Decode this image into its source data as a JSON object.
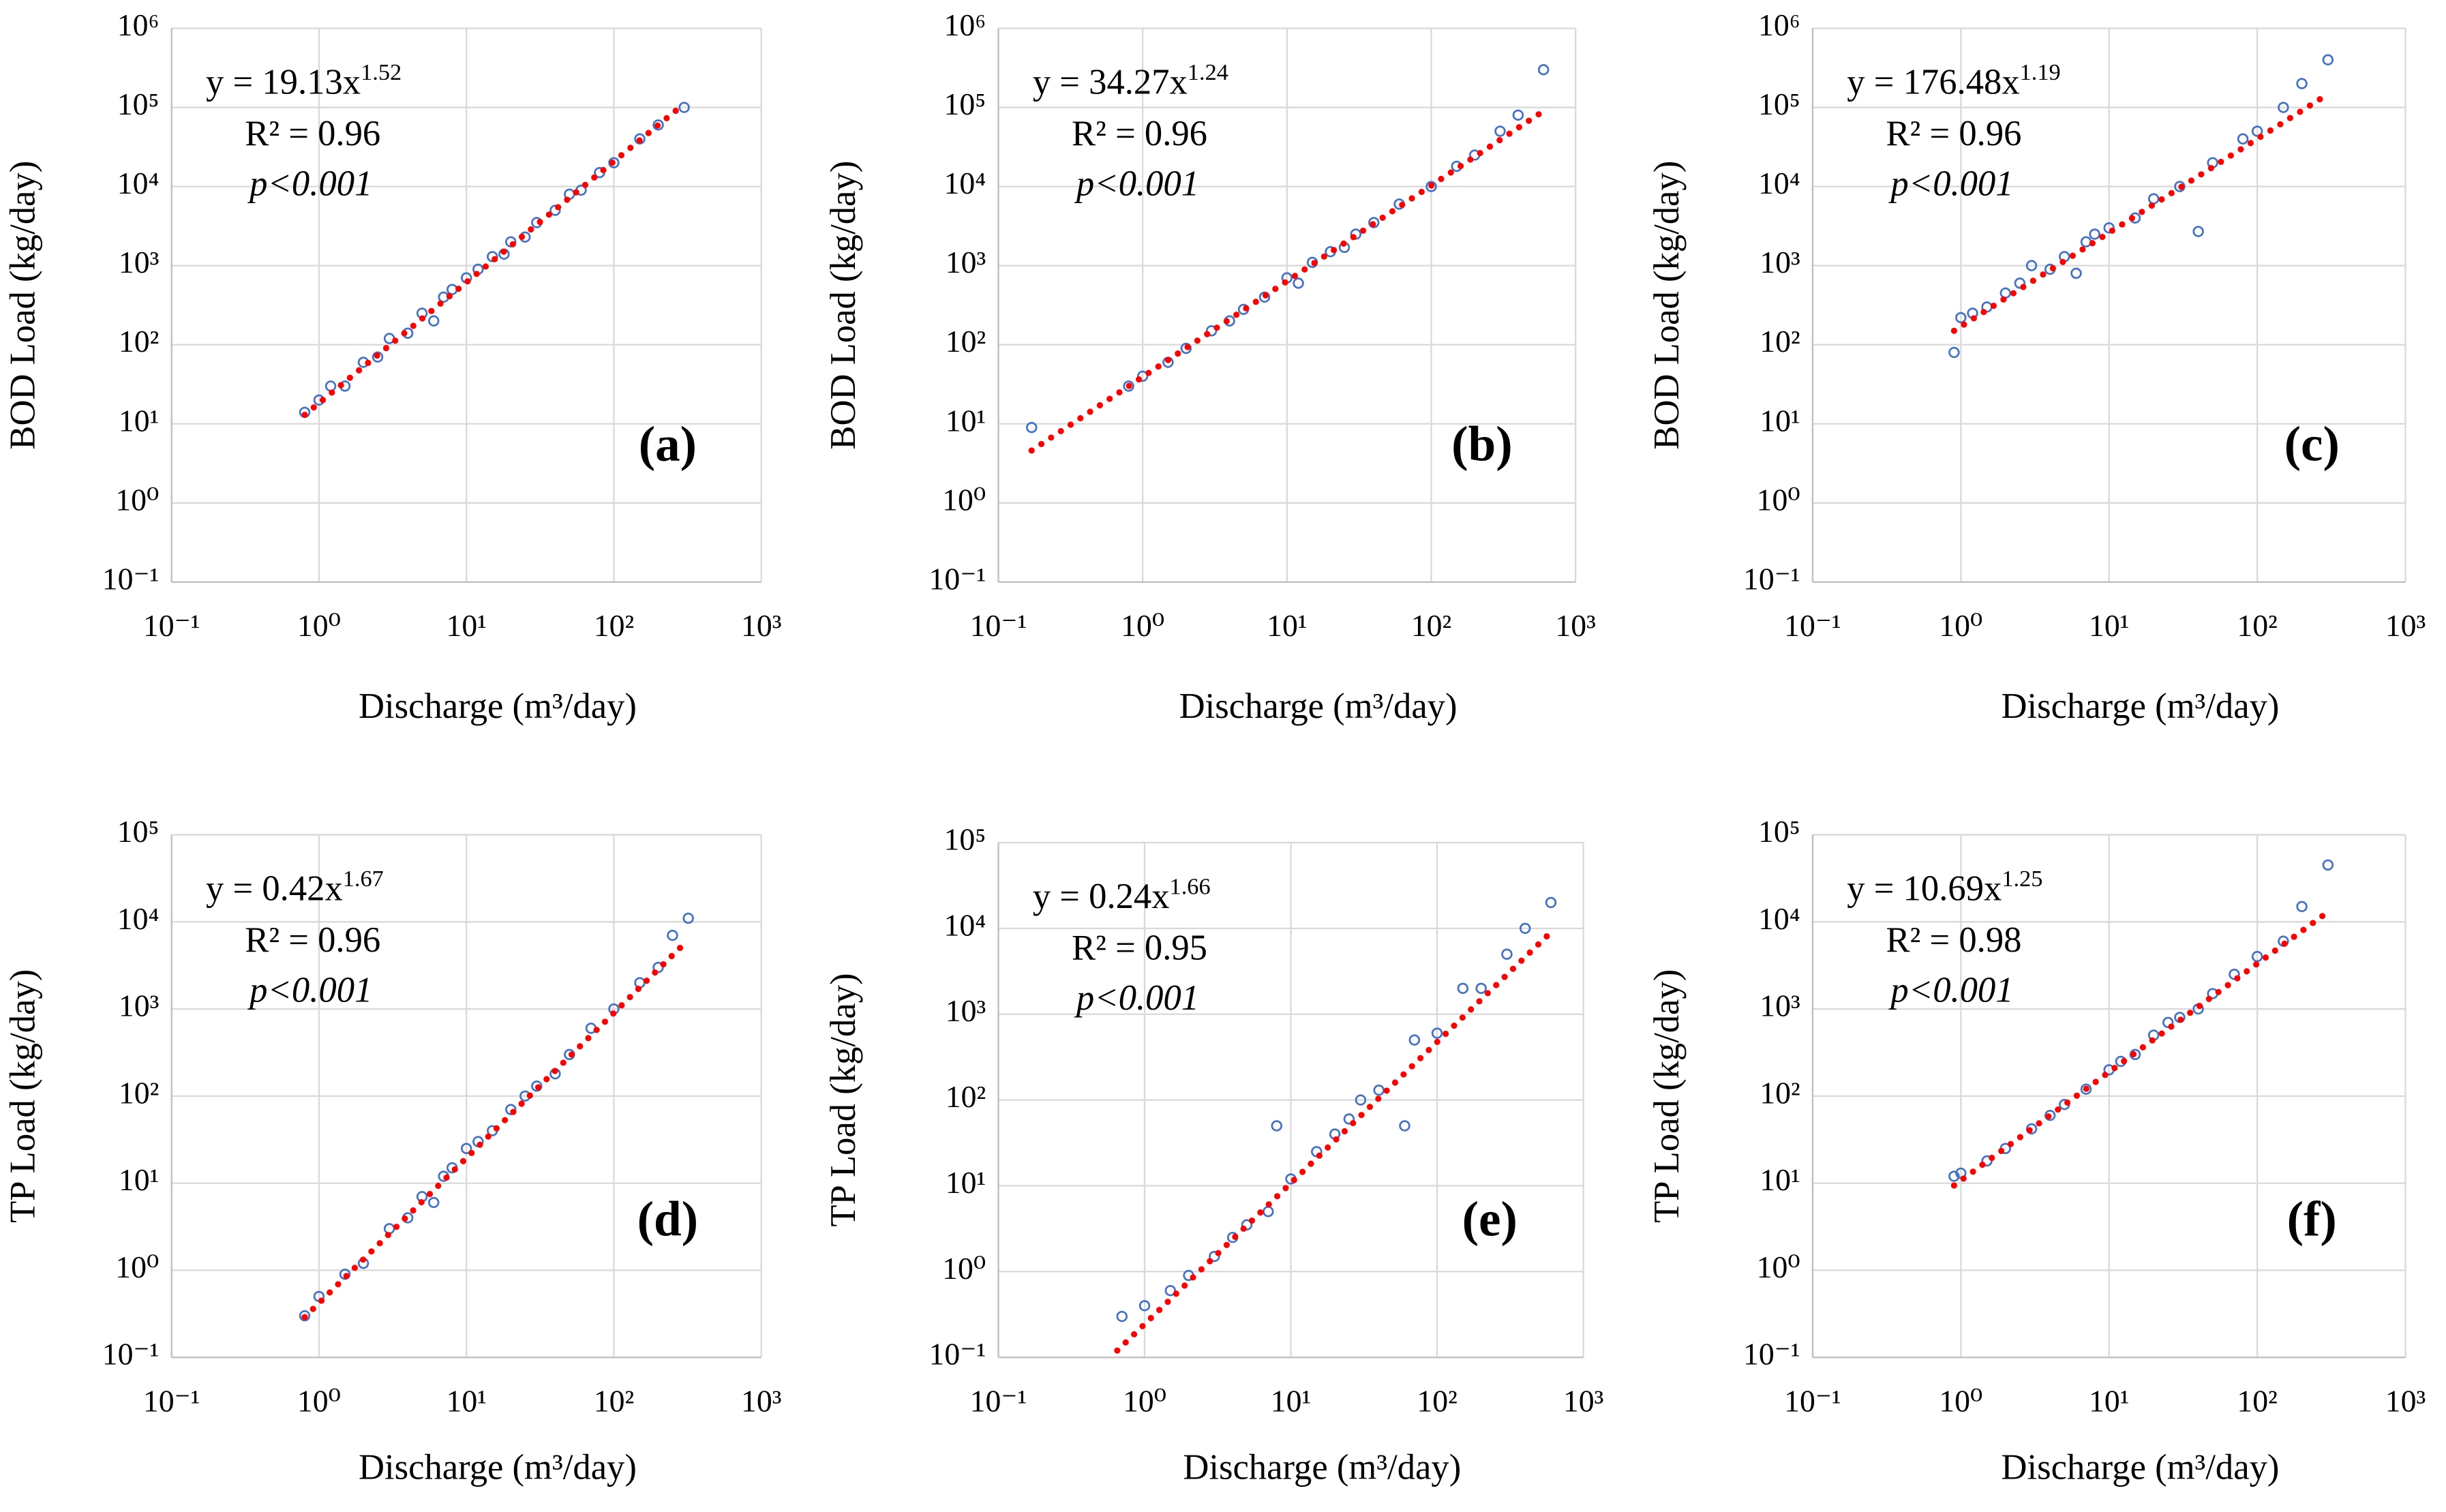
{
  "chart_data": [
    {
      "type": "scatter",
      "panel_label": "(a)",
      "x_label": "Discharge (m³/day)",
      "y_label": "BOD Load (kg/day)",
      "equation": {
        "prefix": "y = 19.13x",
        "exponent": "1.52"
      },
      "r_squared": "R² = 0.96",
      "p_value": "p<0.001",
      "color": "#4472c4",
      "xscale": "log",
      "yscale": "log",
      "grid": true,
      "xlim": [
        0.1,
        1000
      ],
      "xticks": [
        {
          "value": 0.1,
          "label": "10⁻¹"
        },
        {
          "value": 1,
          "label": "10⁰"
        },
        {
          "value": 10,
          "label": "10¹"
        },
        {
          "value": 100,
          "label": "10²"
        },
        {
          "value": 1000,
          "label": "10³"
        }
      ],
      "ylim": [
        0.1,
        1000000
      ],
      "yticks": [
        {
          "value": 0.1,
          "label": "10⁻¹"
        },
        {
          "value": 1,
          "label": "10⁰"
        },
        {
          "value": 10,
          "label": "10¹"
        },
        {
          "value": 100,
          "label": "10²"
        },
        {
          "value": 1000,
          "label": "10³"
        },
        {
          "value": 10000,
          "label": "10⁴"
        },
        {
          "value": 100000,
          "label": "10⁵"
        },
        {
          "value": 1000000,
          "label": "10⁶"
        }
      ],
      "x": [
        0.8,
        1,
        1.2,
        1.5,
        2,
        2.5,
        3,
        4,
        5,
        6,
        7,
        8,
        10,
        12,
        15,
        18,
        20,
        25,
        30,
        40,
        50,
        60,
        80,
        100,
        150,
        200,
        300
      ],
      "y": [
        14,
        20,
        30,
        30,
        60,
        70,
        120,
        140,
        250,
        200,
        400,
        500,
        700,
        900,
        1300,
        1400,
        2000,
        2300,
        3500,
        5000,
        8000,
        9000,
        15000,
        20000,
        40000,
        60000,
        100000
      ],
      "trendline": {
        "x": [
          0.8,
          280
        ],
        "y": [
          13,
          100000
        ],
        "color": "#ff0000"
      }
    },
    {
      "type": "scatter",
      "panel_label": "(b)",
      "x_label": "Discharge (m³/day)",
      "y_label": "BOD Load (kg/day)",
      "equation": {
        "prefix": "y = 34.27x",
        "exponent": "1.24"
      },
      "r_squared": "R² = 0.96",
      "p_value": "p<0.001",
      "color": "#4472c4",
      "xscale": "log",
      "yscale": "log",
      "grid": true,
      "xlim": [
        0.1,
        1000
      ],
      "xticks": [
        {
          "value": 0.1,
          "label": "10⁻¹"
        },
        {
          "value": 1,
          "label": "10⁰"
        },
        {
          "value": 10,
          "label": "10¹"
        },
        {
          "value": 100,
          "label": "10²"
        },
        {
          "value": 1000,
          "label": "10³"
        }
      ],
      "ylim": [
        0.1,
        1000000
      ],
      "yticks": [
        {
          "value": 0.1,
          "label": "10⁻¹"
        },
        {
          "value": 1,
          "label": "10⁰"
        },
        {
          "value": 10,
          "label": "10¹"
        },
        {
          "value": 100,
          "label": "10²"
        },
        {
          "value": 1000,
          "label": "10³"
        },
        {
          "value": 10000,
          "label": "10⁴"
        },
        {
          "value": 100000,
          "label": "10⁵"
        },
        {
          "value": 1000000,
          "label": "10⁶"
        }
      ],
      "x": [
        0.17,
        0.8,
        1,
        1.5,
        2,
        3,
        4,
        5,
        7,
        10,
        12,
        15,
        20,
        25,
        30,
        40,
        60,
        100,
        150,
        200,
        300,
        400,
        600
      ],
      "y": [
        9,
        30,
        40,
        60,
        90,
        150,
        200,
        280,
        400,
        700,
        600,
        1100,
        1500,
        1700,
        2500,
        3500,
        6000,
        10000,
        18000,
        25000,
        50000,
        80000,
        300000
      ],
      "trendline": {
        "x": [
          0.17,
          600
        ],
        "y": [
          4.6,
          90000
        ],
        "color": "#ff0000"
      }
    },
    {
      "type": "scatter",
      "panel_label": "(c)",
      "x_label": "Discharge (m³/day)",
      "y_label": "BOD Load (kg/day)",
      "equation": {
        "prefix": "y = 176.48x",
        "exponent": "1.19"
      },
      "r_squared": "R² = 0.96",
      "p_value": "p<0.001",
      "color": "#4472c4",
      "xscale": "log",
      "yscale": "log",
      "grid": true,
      "xlim": [
        0.1,
        1000
      ],
      "xticks": [
        {
          "value": 0.1,
          "label": "10⁻¹"
        },
        {
          "value": 1,
          "label": "10⁰"
        },
        {
          "value": 10,
          "label": "10¹"
        },
        {
          "value": 100,
          "label": "10²"
        },
        {
          "value": 1000,
          "label": "10³"
        }
      ],
      "ylim": [
        0.1,
        1000000
      ],
      "yticks": [
        {
          "value": 0.1,
          "label": "10⁻¹"
        },
        {
          "value": 1,
          "label": "10⁰"
        },
        {
          "value": 10,
          "label": "10¹"
        },
        {
          "value": 100,
          "label": "10²"
        },
        {
          "value": 1000,
          "label": "10³"
        },
        {
          "value": 10000,
          "label": "10⁴"
        },
        {
          "value": 100000,
          "label": "10⁵"
        },
        {
          "value": 1000000,
          "label": "10⁶"
        }
      ],
      "x": [
        0.9,
        1,
        1.2,
        1.5,
        2,
        2.5,
        3,
        4,
        5,
        6,
        7,
        8,
        10,
        15,
        20,
        30,
        40,
        50,
        80,
        100,
        150,
        200,
        300
      ],
      "y": [
        80,
        220,
        250,
        300,
        450,
        600,
        1000,
        900,
        1300,
        800,
        2000,
        2500,
        3000,
        4000,
        7000,
        10000,
        2700,
        20000,
        40000,
        50000,
        100000,
        200000,
        400000
      ],
      "trendline": {
        "x": [
          0.9,
          270
        ],
        "y": [
          150,
          130000
        ],
        "color": "#ff0000"
      }
    },
    {
      "type": "scatter",
      "panel_label": "(d)",
      "x_label": "Discharge (m³/day)",
      "y_label": "TP Load (kg/day)",
      "equation": {
        "prefix": "y = 0.42x",
        "exponent": "1.67"
      },
      "r_squared": "R² = 0.96",
      "p_value": "p<0.001",
      "color": "#4472c4",
      "xscale": "log",
      "yscale": "log",
      "grid": true,
      "xlim": [
        0.1,
        1000
      ],
      "xticks": [
        {
          "value": 0.1,
          "label": "10⁻¹"
        },
        {
          "value": 1,
          "label": "10⁰"
        },
        {
          "value": 10,
          "label": "10¹"
        },
        {
          "value": 100,
          "label": "10²"
        },
        {
          "value": 1000,
          "label": "10³"
        }
      ],
      "ylim": [
        0.1,
        100000
      ],
      "yticks": [
        {
          "value": 0.1,
          "label": "10⁻¹"
        },
        {
          "value": 1,
          "label": "10⁰"
        },
        {
          "value": 10,
          "label": "10¹"
        },
        {
          "value": 100,
          "label": "10²"
        },
        {
          "value": 1000,
          "label": "10³"
        },
        {
          "value": 10000,
          "label": "10⁴"
        },
        {
          "value": 100000,
          "label": "10⁵"
        }
      ],
      "x": [
        0.8,
        1,
        1.5,
        2,
        3,
        4,
        5,
        6,
        7,
        8,
        10,
        12,
        15,
        20,
        25,
        30,
        40,
        50,
        70,
        100,
        150,
        200,
        250,
        320
      ],
      "y": [
        0.3,
        0.5,
        0.9,
        1.2,
        3,
        4,
        7,
        6,
        12,
        15,
        25,
        30,
        40,
        70,
        100,
        130,
        180,
        300,
        600,
        1000,
        2000,
        3000,
        7000,
        11000
      ],
      "trendline": {
        "x": [
          0.8,
          300
        ],
        "y": [
          0.29,
          5600
        ],
        "color": "#ff0000"
      }
    },
    {
      "type": "scatter",
      "panel_label": "(e)",
      "x_label": "Discharge (m³/day)",
      "y_label": "TP Load (kg/day)",
      "equation": {
        "prefix": "y = 0.24x",
        "exponent": "1.66"
      },
      "r_squared": "R² = 0.95",
      "p_value": "p<0.001",
      "color": "#4472c4",
      "xscale": "log",
      "yscale": "log",
      "grid": true,
      "xlim": [
        0.1,
        1000
      ],
      "xticks": [
        {
          "value": 0.1,
          "label": "10⁻¹"
        },
        {
          "value": 1,
          "label": "10⁰"
        },
        {
          "value": 10,
          "label": "10¹"
        },
        {
          "value": 100,
          "label": "10²"
        },
        {
          "value": 1000,
          "label": "10³"
        }
      ],
      "ylim": [
        0.1,
        100000
      ],
      "yticks": [
        {
          "value": 0.1,
          "label": "10⁻¹"
        },
        {
          "value": 1,
          "label": "10⁰"
        },
        {
          "value": 10,
          "label": "10¹"
        },
        {
          "value": 100,
          "label": "10²"
        },
        {
          "value": 1000,
          "label": "10³"
        },
        {
          "value": 10000,
          "label": "10⁴"
        },
        {
          "value": 100000,
          "label": "10⁵"
        }
      ],
      "x": [
        0.7,
        1,
        1.5,
        2,
        3,
        4,
        5,
        7,
        8,
        10,
        15,
        20,
        25,
        30,
        40,
        60,
        70,
        100,
        150,
        200,
        300,
        400,
        600
      ],
      "y": [
        0.3,
        0.4,
        0.6,
        0.9,
        1.5,
        2.5,
        3.5,
        5,
        50,
        12,
        25,
        40,
        60,
        100,
        130,
        50,
        500,
        600,
        2000,
        2000,
        5000,
        10000,
        20000
      ],
      "trendline": {
        "x": [
          0.65,
          600
        ],
        "y": [
          0.12,
          9000
        ],
        "color": "#ff0000"
      }
    },
    {
      "type": "scatter",
      "panel_label": "(f)",
      "x_label": "Discharge (m³/day)",
      "y_label": "TP Load (kg/day)",
      "equation": {
        "prefix": "y = 10.69x",
        "exponent": "1.25"
      },
      "r_squared": "R² = 0.98",
      "p_value": "p<0.001",
      "color": "#4472c4",
      "xscale": "log",
      "yscale": "log",
      "grid": true,
      "xlim": [
        0.1,
        1000
      ],
      "xticks": [
        {
          "value": 0.1,
          "label": "10⁻¹"
        },
        {
          "value": 1,
          "label": "10⁰"
        },
        {
          "value": 10,
          "label": "10¹"
        },
        {
          "value": 100,
          "label": "10²"
        },
        {
          "value": 1000,
          "label": "10³"
        }
      ],
      "ylim": [
        0.1,
        100000
      ],
      "yticks": [
        {
          "value": 0.1,
          "label": "10⁻¹"
        },
        {
          "value": 1,
          "label": "10⁰"
        },
        {
          "value": 10,
          "label": "10¹"
        },
        {
          "value": 100,
          "label": "10²"
        },
        {
          "value": 1000,
          "label": "10³"
        },
        {
          "value": 10000,
          "label": "10⁴"
        },
        {
          "value": 100000,
          "label": "10⁵"
        }
      ],
      "x": [
        0.9,
        1,
        1.5,
        2,
        3,
        4,
        5,
        7,
        10,
        12,
        15,
        20,
        25,
        30,
        40,
        50,
        70,
        100,
        150,
        200,
        300
      ],
      "y": [
        12,
        13,
        18,
        25,
        42,
        60,
        80,
        120,
        200,
        250,
        300,
        500,
        700,
        800,
        1000,
        1500,
        2500,
        4000,
        6000,
        15000,
        45000
      ],
      "trendline": {
        "x": [
          0.9,
          300
        ],
        "y": [
          9.4,
          13000
        ],
        "color": "#ff0000"
      }
    }
  ]
}
